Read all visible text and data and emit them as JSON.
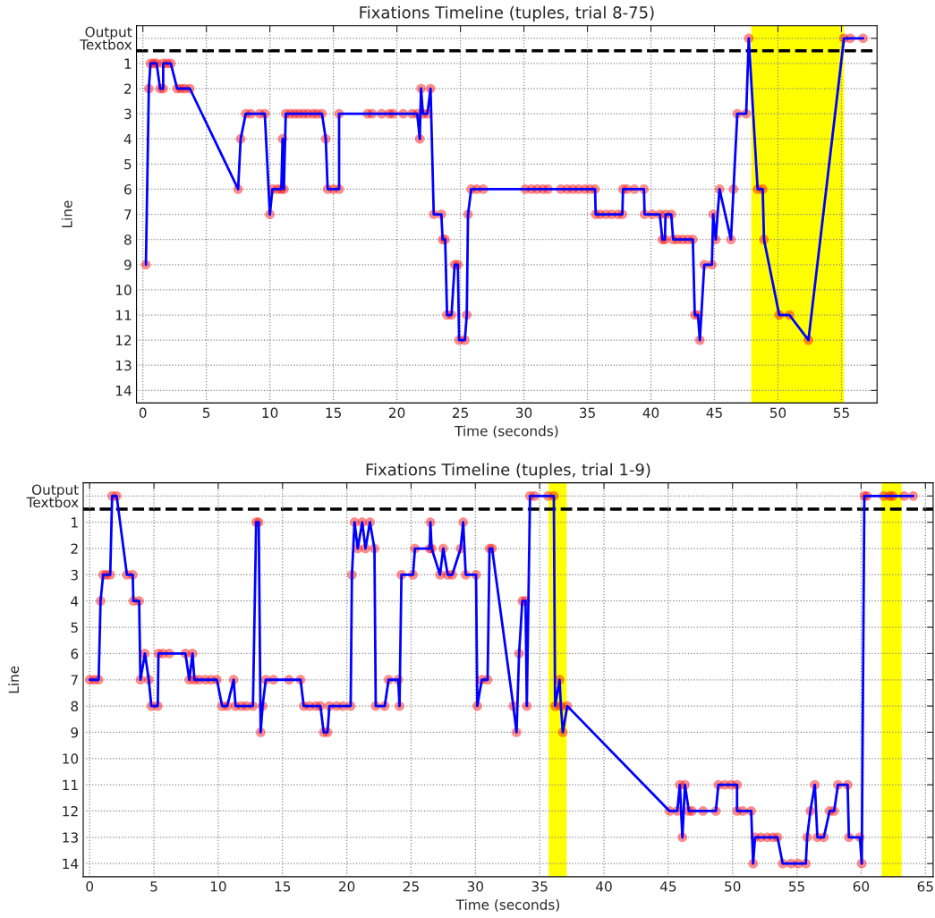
{
  "chart_data": [
    {
      "type": "line",
      "title": "Fixations Timeline (tuples, trial 8-75)",
      "xlabel": "Time (seconds)",
      "ylabel": "Line",
      "xlim": [
        -0.5,
        57.8
      ],
      "xticks": [
        0,
        5,
        10,
        15,
        20,
        25,
        30,
        35,
        40,
        45,
        50,
        55
      ],
      "ylim": [
        14.5,
        -0.5
      ],
      "yticks": [
        {
          "value": 0,
          "label": "Output\nTextbox"
        },
        1,
        2,
        3,
        4,
        5,
        6,
        7,
        8,
        9,
        10,
        11,
        12,
        13,
        14
      ],
      "grid": true,
      "marker": "circle",
      "line_style": "solid",
      "ref_lines": [
        {
          "axis": "y",
          "value": 0.5,
          "color": "#000000",
          "line_style": "dashed"
        }
      ],
      "bands": [
        {
          "axis": "x",
          "from": 47.9,
          "to": 55.2,
          "color": "#ffff00"
        }
      ],
      "series": [
        {
          "color": "#0000ff",
          "x": [
            0.24,
            0.47,
            0.6,
            0.85,
            1.08,
            1.36,
            1.6,
            1.6,
            1.9,
            2.2,
            2.7,
            3.0,
            3.3,
            3.7,
            7.5,
            7.7,
            8.1,
            8.5,
            9.2,
            9.6,
            10.0,
            10.2,
            10.6,
            10.9,
            11.0,
            11.1,
            11.25,
            11.6,
            11.95,
            12.3,
            12.65,
            13.0,
            13.4,
            13.7,
            14.1,
            14.4,
            14.55,
            15.0,
            15.45,
            15.45,
            17.7,
            18.05,
            18.8,
            19.4,
            19.7,
            20.5,
            21.2,
            21.6,
            21.8,
            21.9,
            22.05,
            22.4,
            22.65,
            22.9,
            23.5,
            23.6,
            23.8,
            23.95,
            24.3,
            24.55,
            24.8,
            24.9,
            25.35,
            25.5,
            25.6,
            25.85,
            26.3,
            26.8,
            30.1,
            30.6,
            31.05,
            31.5,
            31.9,
            32.9,
            33.4,
            33.85,
            34.3,
            34.8,
            35.2,
            35.6,
            35.65,
            36.0,
            36.45,
            36.9,
            37.4,
            37.75,
            37.8,
            38.1,
            38.7,
            39.45,
            39.5,
            40.1,
            40.7,
            40.9,
            41.1,
            41.15,
            41.6,
            41.75,
            42.1,
            42.5,
            42.9,
            43.3,
            43.45,
            43.7,
            43.85,
            44.2,
            44.8,
            44.9,
            45.1,
            45.4,
            46.3,
            46.5,
            46.8,
            47.5,
            47.7,
            48.4,
            48.8,
            48.9,
            50.1,
            50.9,
            52.4,
            55.2,
            55.7,
            56.7
          ],
          "values": [
            9,
            2,
            1,
            1,
            1,
            2,
            2,
            1,
            1,
            1,
            2,
            2,
            2,
            2,
            6,
            4,
            3,
            3,
            3,
            3,
            7,
            6,
            6,
            6,
            4,
            6,
            3,
            3,
            3,
            3,
            3,
            3,
            3,
            3,
            3,
            4,
            6,
            6,
            6,
            3,
            3,
            3,
            3,
            3,
            3,
            3,
            3,
            3,
            4,
            2,
            3,
            3,
            2,
            7,
            7,
            8,
            8,
            11,
            11,
            9,
            9,
            12,
            12,
            11,
            7,
            6,
            6,
            6,
            6,
            6,
            6,
            6,
            6,
            6,
            6,
            6,
            6,
            6,
            6,
            6,
            7,
            7,
            7,
            7,
            7,
            7,
            6,
            6,
            6,
            6,
            7,
            7,
            7,
            8,
            8,
            7,
            7,
            8,
            8,
            8,
            8,
            8,
            11,
            11,
            12,
            9,
            9,
            7,
            8,
            6,
            8,
            6,
            3,
            3,
            0,
            6,
            6,
            8,
            11,
            11,
            12,
            0,
            0,
            0
          ]
        }
      ]
    },
    {
      "type": "line",
      "title": "Fixations Timeline (tuples, trial 1-9)",
      "xlabel": "Time (seconds)",
      "ylabel": "Line",
      "xlim": [
        -0.5,
        65.6
      ],
      "xticks": [
        0,
        5,
        10,
        15,
        20,
        25,
        30,
        35,
        40,
        45,
        50,
        55,
        60,
        65
      ],
      "ylim": [
        14.5,
        -0.5
      ],
      "yticks": [
        {
          "value": 0,
          "label": "Output\nTextbox"
        },
        1,
        2,
        3,
        4,
        5,
        6,
        7,
        8,
        9,
        10,
        11,
        12,
        13,
        14
      ],
      "grid": true,
      "marker": "circle",
      "line_style": "solid",
      "ref_lines": [
        {
          "axis": "y",
          "value": 0.5,
          "color": "#000000",
          "line_style": "dashed"
        }
      ],
      "bands": [
        {
          "axis": "x",
          "from": 35.7,
          "to": 37.1,
          "color": "#ffff00"
        },
        {
          "axis": "x",
          "from": 61.6,
          "to": 63.15,
          "color": "#ffff00"
        }
      ],
      "series": [
        {
          "color": "#0000ff",
          "x": [
            0,
            0.35,
            0.7,
            0.85,
            1.05,
            1.3,
            1.6,
            1.75,
            2.1,
            2.9,
            3.35,
            3.4,
            3.85,
            3.95,
            4.3,
            4.6,
            4.8,
            5.3,
            5.35,
            5.7,
            6.2,
            7.45,
            7.75,
            8.0,
            8.15,
            8.5,
            9.0,
            9.45,
            9.9,
            10.3,
            10.7,
            11.2,
            11.35,
            11.8,
            12.2,
            12.7,
            12.95,
            13.15,
            13.3,
            13.45,
            13.7,
            14.3,
            15.5,
            16.4,
            16.65,
            17.1,
            17.6,
            17.95,
            18.2,
            18.5,
            18.65,
            19.2,
            19.7,
            20.3,
            20.4,
            20.6,
            20.85,
            21.2,
            21.45,
            21.8,
            22.15,
            22.25,
            22.95,
            23.25,
            24.0,
            24.1,
            24.25,
            25.15,
            25.3,
            26.45,
            26.5,
            26.6,
            27.25,
            27.5,
            27.85,
            28.2,
            28.85,
            29.05,
            29.25,
            30.05,
            30.15,
            30.5,
            30.95,
            31.1,
            31.3,
            32.95,
            33.2,
            33.4,
            33.65,
            33.9,
            34.0,
            34.25,
            34.6,
            35.65,
            36.1,
            36.2,
            36.55,
            36.65,
            36.8,
            37.15,
            45.1,
            45.7,
            45.9,
            46.1,
            46.3,
            46.6,
            46.85,
            47.7,
            48.7,
            48.9,
            49.4,
            49.9,
            50.35,
            50.35,
            50.8,
            51.45,
            51.6,
            51.75,
            52.2,
            52.7,
            53.15,
            53.5,
            53.9,
            54.55,
            55.1,
            55.7,
            55.8,
            56.05,
            56.4,
            56.6,
            57.1,
            57.55,
            57.9,
            58.2,
            58.95,
            59.05,
            59.9,
            60.05,
            60.25,
            60.45,
            61.75,
            62.2,
            62.45,
            63.35,
            64.05
          ],
          "values": [
            7,
            7,
            7,
            4,
            3,
            3,
            3,
            0,
            0,
            3,
            3,
            4,
            4,
            7,
            6,
            7,
            8,
            8,
            6,
            6,
            6,
            6,
            7,
            6,
            7,
            7,
            7,
            7,
            7,
            8,
            8,
            7,
            8,
            8,
            8,
            8,
            1,
            1,
            9,
            8,
            7,
            7,
            7,
            7,
            8,
            8,
            8,
            8,
            9,
            9,
            8,
            8,
            8,
            8,
            3,
            1,
            2,
            1,
            2,
            1,
            2,
            8,
            8,
            7,
            7,
            8,
            3,
            3,
            2,
            2,
            1,
            2,
            3,
            2,
            3,
            3,
            2,
            1,
            3,
            3,
            8,
            7,
            7,
            2,
            2,
            8,
            9,
            6,
            4,
            4,
            8,
            0,
            0,
            0,
            0,
            8,
            7,
            8,
            9,
            8,
            12,
            12,
            11,
            13,
            11,
            12,
            12,
            12,
            12,
            11,
            11,
            11,
            11,
            12,
            12,
            12,
            14,
            13,
            13,
            13,
            13,
            13,
            14,
            14,
            14,
            14,
            13,
            12,
            11,
            13,
            13,
            12,
            12,
            11,
            11,
            13,
            13,
            14,
            0,
            0,
            0,
            0,
            0,
            0,
            0
          ]
        }
      ]
    }
  ]
}
